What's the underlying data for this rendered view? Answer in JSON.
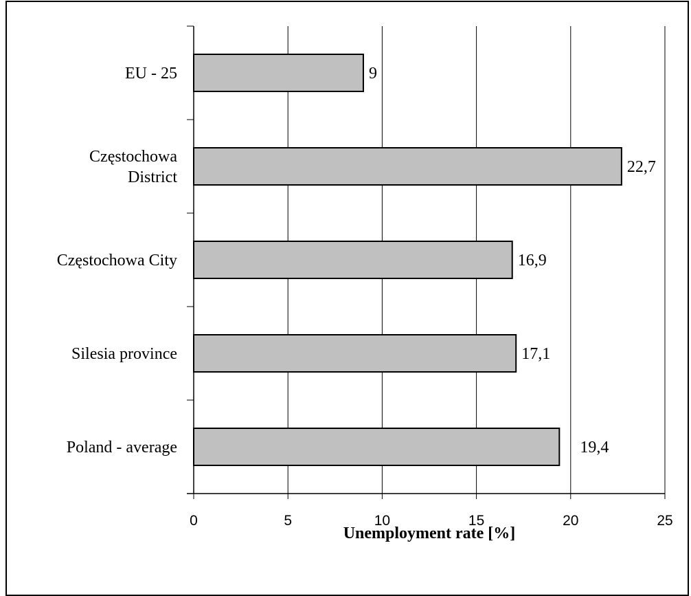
{
  "chart_data": {
    "type": "bar",
    "orientation": "horizontal",
    "categories": [
      [
        "EU - 25"
      ],
      [
        "Częstochowa",
        "District"
      ],
      [
        "Częstochowa City"
      ],
      [
        "Silesia province"
      ],
      [
        "Poland - average"
      ]
    ],
    "values": [
      9,
      22.7,
      16.9,
      17.1,
      19.4
    ],
    "value_labels": [
      "9",
      "22,7",
      "16,9",
      "17,1",
      "19,4"
    ],
    "xlabel": "Unemployment rate [%]",
    "xlim": [
      0,
      25
    ],
    "xticks": [
      0,
      5,
      10,
      15,
      20,
      25
    ],
    "grid": "vertical",
    "bar_color": "#c0c0c0",
    "bar_edge_color": "#000000"
  }
}
